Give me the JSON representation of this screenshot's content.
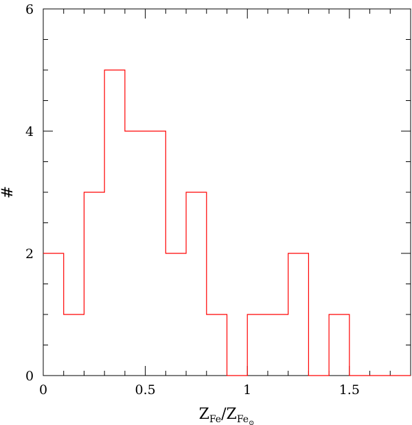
{
  "chart_data": {
    "type": "bar",
    "style": "step-histogram",
    "bin_edges": [
      0,
      0.1,
      0.2,
      0.3,
      0.4,
      0.5,
      0.6,
      0.7,
      0.8,
      0.9,
      1.0,
      1.1,
      1.2,
      1.3,
      1.4,
      1.5,
      1.6,
      1.7,
      1.8
    ],
    "values": [
      2,
      1,
      3,
      5,
      4,
      4,
      2,
      3,
      1,
      0,
      1,
      1,
      2,
      0,
      1,
      0,
      0,
      0
    ],
    "xlim": [
      0,
      1.8
    ],
    "ylim": [
      0,
      6
    ],
    "x_ticks": [
      0,
      0.5,
      1,
      1.5
    ],
    "x_tick_labels": [
      "0",
      "0.5",
      "1",
      "1.5"
    ],
    "y_ticks": [
      0,
      2,
      4,
      6
    ],
    "y_tick_labels": [
      "0",
      "2",
      "4",
      "6"
    ],
    "ylabel": "#",
    "xlabel": {
      "main": "Z",
      "sub": "Fe",
      "separator": "/",
      "main2": "Z",
      "sub2": "Fe",
      "subsub2": "⊙"
    },
    "series_color": "#ff0000",
    "grid": false
  }
}
